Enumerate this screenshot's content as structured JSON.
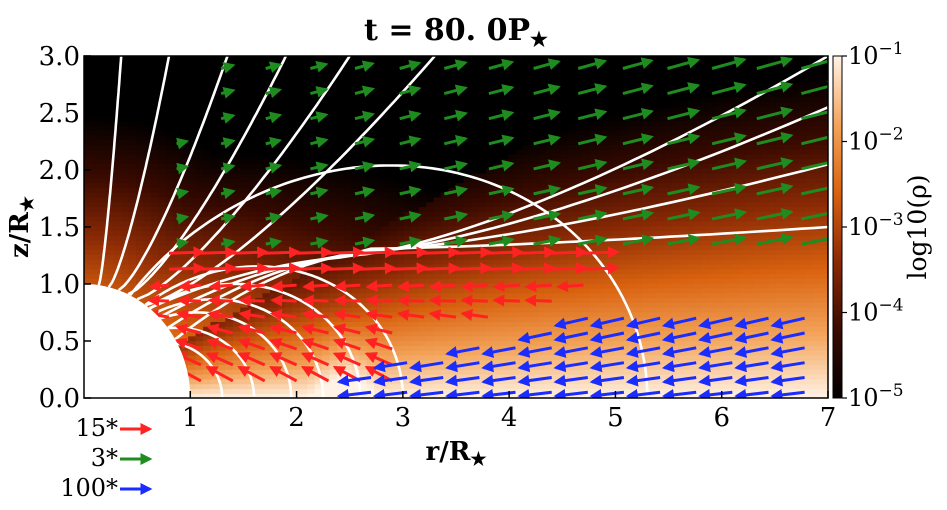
{
  "chart_data": {
    "type": "heatmap",
    "title": "t = 80. 0P",
    "title_symbol": "★",
    "xlabel": "r/R",
    "ylabel": "z/R",
    "label_symbol": "★",
    "xlim": [
      0.0,
      7.0
    ],
    "ylim": [
      0.0,
      3.0
    ],
    "x_ticks": [
      "1",
      "2",
      "3",
      "4",
      "5",
      "6",
      "7"
    ],
    "y_ticks": [
      "0.0",
      "0.5",
      "1.0",
      "1.5",
      "2.0",
      "2.5",
      "3.0"
    ],
    "colorbar": {
      "label": "log10(ρ)",
      "scale": "log",
      "range": [
        1e-05,
        0.1
      ],
      "ticks": [
        {
          "base": "10",
          "exp": "−1",
          "value": 0.1
        },
        {
          "base": "10",
          "exp": "−2",
          "value": 0.01
        },
        {
          "base": "10",
          "exp": "−3",
          "value": 0.001
        },
        {
          "base": "10",
          "exp": "−4",
          "value": 0.0001
        },
        {
          "base": "10",
          "exp": "−5",
          "value": 1e-05
        }
      ],
      "colormap": [
        "#000000",
        "#3a0a00",
        "#8b2a05",
        "#d9620f",
        "#f3a45a",
        "#fff3e6"
      ]
    },
    "stellar_radius": 1.0,
    "vector_key": [
      {
        "label": "15*",
        "color": "#ff2222",
        "series": "slow_inflow"
      },
      {
        "label": "3*",
        "color": "#1e8c1e",
        "series": "polar_wind"
      },
      {
        "label": "100*",
        "color": "#1b2cff",
        "series": "disk_outflow"
      }
    ],
    "closed_field_loop_apexes": [
      1.3,
      1.6,
      1.95,
      2.25,
      2.6,
      3.0,
      5.3
    ],
    "open_field_line_endpoints_at_top": [
      0.35,
      0.8,
      1.35,
      1.9,
      2.5,
      3.3
    ],
    "open_field_line_endpoints_at_right": [
      3.0,
      2.55,
      2.05,
      1.5
    ],
    "colors": {
      "field_lines": "#ffffff",
      "star": "#ffffff"
    }
  }
}
